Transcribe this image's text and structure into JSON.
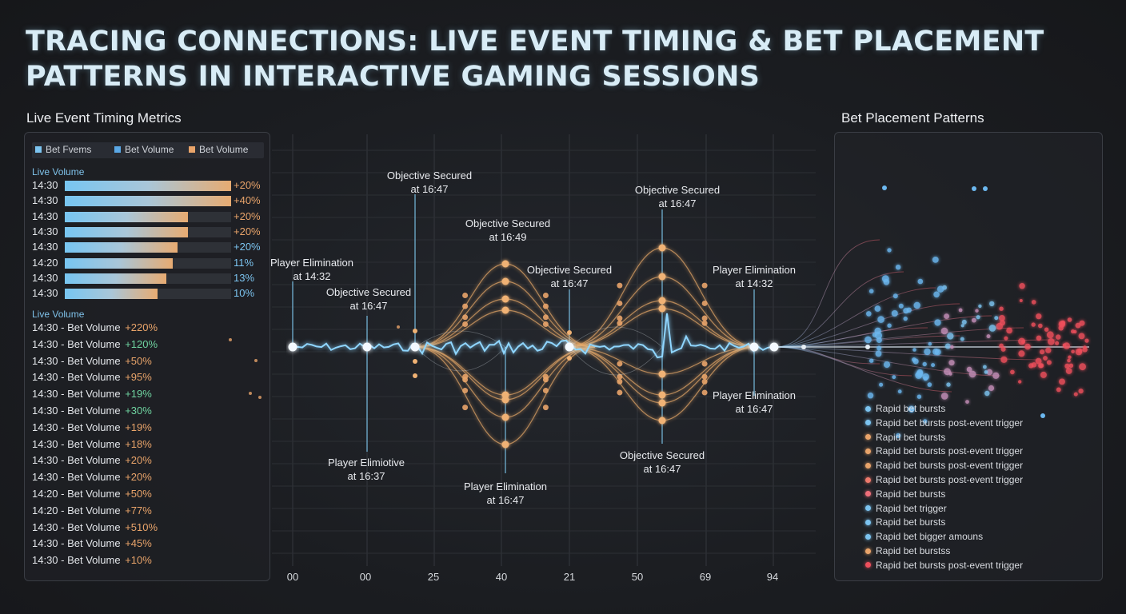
{
  "title": {
    "line1": "TRACING CONNECTIONS: LIVE EVENT TIMING & BET PLACEMENT",
    "line2": "PATTERNS IN INTERACTIVE GAMING SESSIONS"
  },
  "left_panel": {
    "heading": "Live Event Timing Metrics",
    "legend": [
      {
        "label": "Bet Fvems",
        "color": "#7cc4f0"
      },
      {
        "label": "Bet Volume",
        "color": "#5aa8e6"
      },
      {
        "label": "Bet Volume",
        "color": "#e9a46a"
      }
    ],
    "bars_label": "Live Volume",
    "bars": [
      {
        "time": "14:30",
        "fraction": 1.0,
        "pct": "+20%",
        "pct_color": "#e9a46a"
      },
      {
        "time": "14:30",
        "fraction": 1.0,
        "pct": "+40%",
        "pct_color": "#e9a46a"
      },
      {
        "time": "14:30",
        "fraction": 0.74,
        "pct": "+20%",
        "pct_color": "#e9a46a"
      },
      {
        "time": "14:30",
        "fraction": 0.74,
        "pct": "+20%",
        "pct_color": "#e9a46a"
      },
      {
        "time": "14:30",
        "fraction": 0.68,
        "pct": "+20%",
        "pct_color": "#7cc4f0"
      },
      {
        "time": "14:20",
        "fraction": 0.65,
        "pct": "11%",
        "pct_color": "#7cc4f0"
      },
      {
        "time": "14:30",
        "fraction": 0.61,
        "pct": "13%",
        "pct_color": "#7cc4f0"
      },
      {
        "time": "14:30",
        "fraction": 0.56,
        "pct": "10%",
        "pct_color": "#7cc4f0"
      }
    ],
    "list_label": "Live Volume",
    "list": [
      {
        "text": "14:30 - Bet Volume",
        "pct": "+220%",
        "pct_color": "#e9a46a"
      },
      {
        "text": "14:30 - Bet Volume",
        "pct": "+120%",
        "pct_color": "#6fd3a0"
      },
      {
        "text": "14:30 - Bet Volume",
        "pct": "+50%",
        "pct_color": "#e9a46a"
      },
      {
        "text": "14:30 - Bet Volume",
        "pct": "+95%",
        "pct_color": "#e9a46a"
      },
      {
        "text": "14:30 - Bet Volume",
        "pct": "+19%",
        "pct_color": "#6fd3a0"
      },
      {
        "text": "14:30 - Bet Volume",
        "pct": "+30%",
        "pct_color": "#6fd3a0"
      },
      {
        "text": "14:30 - Bet Volume",
        "pct": "+19%",
        "pct_color": "#e9a46a"
      },
      {
        "text": "14:30 - Bet Volume",
        "pct": "+18%",
        "pct_color": "#e9a46a"
      },
      {
        "text": "14:30 - Bet Volume",
        "pct": "+20%",
        "pct_color": "#e9a46a"
      },
      {
        "text": "14:30 - Bet Volume",
        "pct": "+20%",
        "pct_color": "#e9a46a"
      },
      {
        "text": "14:20 - Bet Volume",
        "pct": "+50%",
        "pct_color": "#e9a46a"
      },
      {
        "text": "14:20 - Bet Volume",
        "pct": "+77%",
        "pct_color": "#e9a46a"
      },
      {
        "text": "14:30 - Bet Volume",
        "pct": "+510%",
        "pct_color": "#e9a46a"
      },
      {
        "text": "14:30 - Bet Volume",
        "pct": "+45%",
        "pct_color": "#e9a46a"
      },
      {
        "text": "14:30 - Bet Volume",
        "pct": "+10%",
        "pct_color": "#e9a46a"
      }
    ]
  },
  "chart_data": {
    "type": "line",
    "x_tick_labels": [
      "00",
      "00",
      "25",
      "40",
      "21",
      "50",
      "69",
      "94"
    ],
    "annotations": [
      {
        "line1": "Player Elimination",
        "line2": "at 14:32"
      },
      {
        "line1": "Objective Secured",
        "line2": "at 16:47"
      },
      {
        "line1": "Objective Secured",
        "line2": "at 16:47"
      },
      {
        "line1": "Objective Secured",
        "line2": "at 16:49"
      },
      {
        "line1": "Objective Secured",
        "line2": "at 16:47"
      },
      {
        "line1": "Objective Secured",
        "line2": "at 16:47"
      },
      {
        "line1": "Player Elimination",
        "line2": "at 14:32"
      },
      {
        "line1": "Player Elimiotive",
        "line2": "at 16:37"
      },
      {
        "line1": "Player Elimination",
        "line2": "at 16:47"
      },
      {
        "line1": "Objective Secured",
        "line2": "at 16:47"
      },
      {
        "line1": "Player Elimination",
        "line2": "at 16:47"
      }
    ]
  },
  "right_panel": {
    "heading": "Bet Placement Patterns",
    "legend": [
      {
        "label": "Rapid bet bursts",
        "color": "#7cc4f0"
      },
      {
        "label": "Rapid bet bursts post-event trigger",
        "color": "#7cc4f0"
      },
      {
        "label": "Rapid bet bursts",
        "color": "#e9a46a"
      },
      {
        "label": "Rapid bet bursts post-event trigger",
        "color": "#e9a46a"
      },
      {
        "label": "Rapid bet bursts post-event trigger",
        "color": "#e9a46a"
      },
      {
        "label": "Rapid bet bursts post-event trigger",
        "color": "#ef7a6c"
      },
      {
        "label": "Rapid bet bursts",
        "color": "#ef6f7a"
      },
      {
        "label": "Rapid bet trigger",
        "color": "#7cc4f0"
      },
      {
        "label": "Rapid bet bursts",
        "color": "#7cc4f0"
      },
      {
        "label": "Rapid bet bigger amouns",
        "color": "#7cc4f0"
      },
      {
        "label": "Rapid bet burstss",
        "color": "#e9a46a"
      },
      {
        "label": "Rapid bet bursts post-event trigger",
        "color": "#ef4f5c"
      }
    ]
  }
}
